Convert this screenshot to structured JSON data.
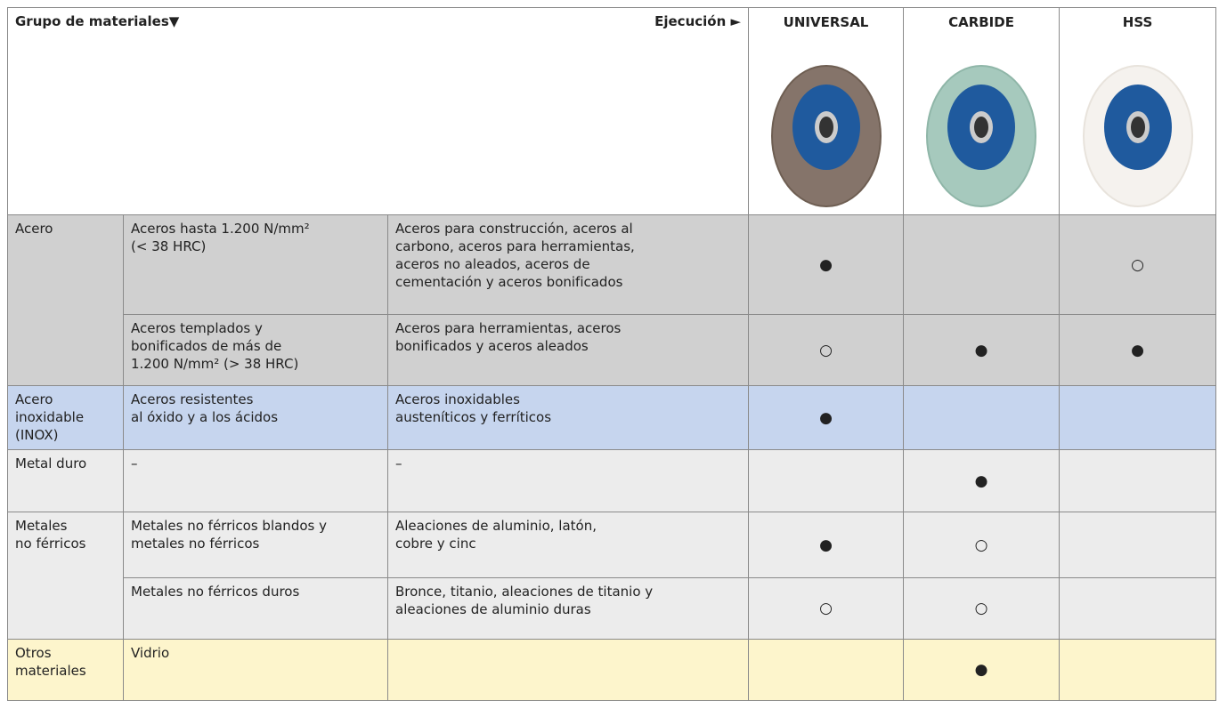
{
  "header": {
    "group_label": "Grupo de materiales▼",
    "execution_label": "Ejecución ►",
    "products": [
      "UNIVERSAL",
      "CARBIDE",
      "HSS"
    ]
  },
  "groups": [
    {
      "name": "Acero",
      "rows": [
        {
          "material": "Aceros hasta 1.200 N/mm²\n(< 38 HRC)",
          "examples": "Aceros para construcción, aceros al\ncarbono, aceros para herramientas,\naceros no aleados, aceros de\ncementación y aceros bonificados",
          "ratings": [
            "●",
            null,
            "○"
          ]
        },
        {
          "material": "Aceros templados y\nbonificados de más de\n1.200 N/mm² (> 38 HRC)",
          "examples": "Aceros para herramientas, aceros\nbonificados y aceros aleados",
          "ratings": [
            "○",
            "●",
            "●"
          ]
        }
      ]
    },
    {
      "name": "Acero\ninoxidable\n(INOX)",
      "rows": [
        {
          "material": "Aceros resistentes\nal óxido y a los ácidos",
          "examples": "Aceros inoxidables\nausteníticos y ferríticos",
          "ratings": [
            "●",
            null,
            null
          ]
        }
      ]
    },
    {
      "name": "Metal duro",
      "rows": [
        {
          "material": "–",
          "examples": "–",
          "ratings": [
            null,
            "●",
            null
          ]
        }
      ]
    },
    {
      "name": "Metales\nno férricos",
      "rows": [
        {
          "material": "Metales no férricos blandos y\nmetales no férricos",
          "examples": "Aleaciones de aluminio, latón,\ncobre y cinc",
          "ratings": [
            "●",
            "○",
            null
          ]
        },
        {
          "material": "Metales no férricos duros",
          "examples": "Bronce, titanio, aleaciones de titanio y\naleaciones de aluminio duras",
          "ratings": [
            "○",
            "○",
            null
          ]
        }
      ]
    },
    {
      "name": "Otros\nmateriales",
      "rows": [
        {
          "material": "Vidrio",
          "examples": null,
          "ratings": [
            null,
            "●",
            null
          ]
        }
      ]
    }
  ]
}
